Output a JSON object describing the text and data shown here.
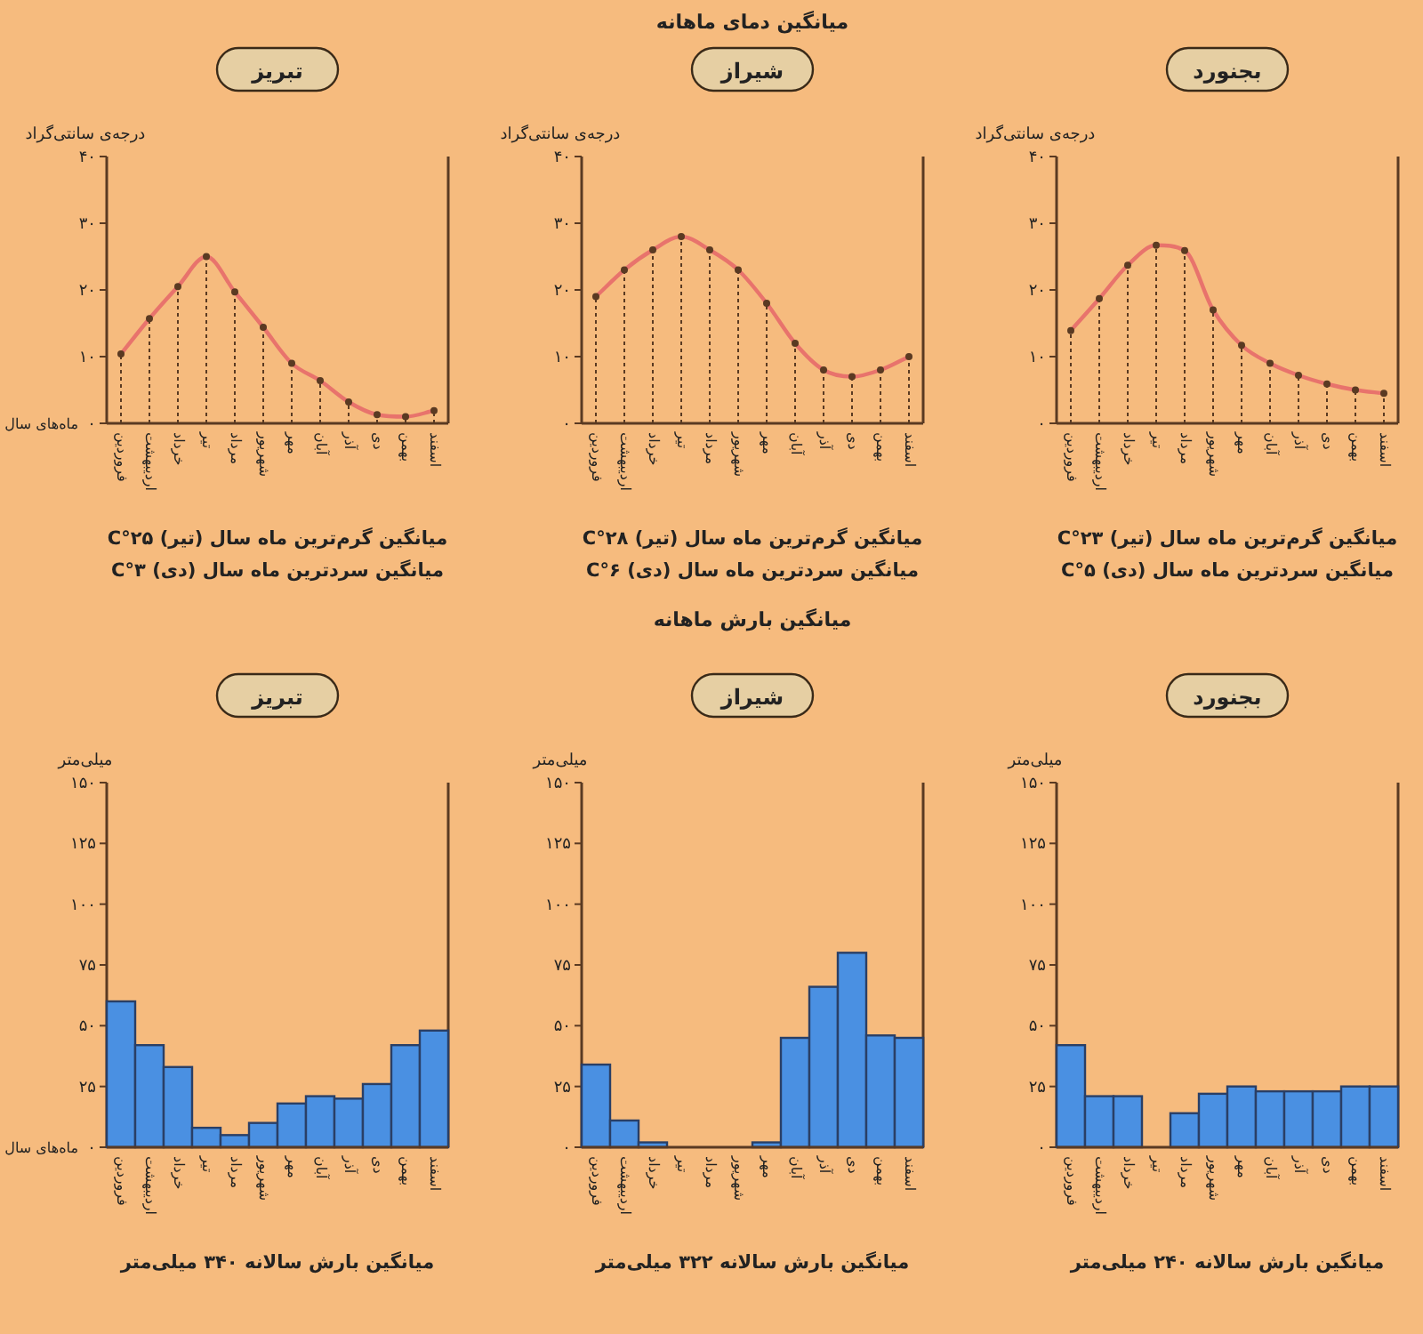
{
  "chart_data": [
    {
      "type": "line",
      "title": "تبریز",
      "ylabel": "درجه‌ی سانتی‌گراد",
      "xlabel": "ماه‌های سال",
      "categories": [
        "فروردین",
        "اردیبهشت",
        "خرداد",
        "تیر",
        "مرداد",
        "شهریور",
        "مهر",
        "آبان",
        "آذر",
        "دی",
        "بهمن",
        "اسفند"
      ],
      "series": [
        {
          "color": "#e8736c",
          "values": [
            10.4,
            15.7,
            20.5,
            25,
            19.7,
            14.4,
            9,
            6.4,
            3.2,
            1.3,
            1,
            1.9
          ]
        },
        {
          "type": "lollipop",
          "color": "#5a3a22",
          "values": [
            10.4,
            15.7,
            20.5,
            25,
            19.7,
            14.4,
            9,
            6.4,
            3.2,
            1.3,
            1,
            1.9
          ]
        }
      ],
      "ylim": [
        0,
        40
      ],
      "yticks": [
        {
          "value": 0,
          "label": "۰"
        },
        {
          "value": 10,
          "label": "۱۰"
        },
        {
          "value": 20,
          "label": "۲۰"
        },
        {
          "value": 30,
          "label": "۳۰"
        },
        {
          "value": 40,
          "label": "۴۰"
        }
      ],
      "line_style": "solid",
      "annotations": [
        "میانگین گرم‌ترین ماه سال (تیر) ۲۵°C",
        "میانگین سردترین ماه سال (دی) ۳°C"
      ]
    },
    {
      "type": "line",
      "subtitle": "میانگین دمای ماهانه",
      "title": "شیراز",
      "ylabel": "درجه‌ی سانتی‌گراد",
      "categories": [
        "فروردین",
        "اردیبهشت",
        "خرداد",
        "تیر",
        "مرداد",
        "شهریور",
        "مهر",
        "آبان",
        "آذر",
        "دی",
        "بهمن",
        "اسفند"
      ],
      "series": [
        {
          "color": "#e8736c",
          "values": [
            19,
            23,
            26,
            28,
            26,
            23,
            18,
            12,
            8,
            7,
            8,
            10
          ]
        },
        {
          "type": "lollipop",
          "color": "#5a3a22",
          "values": [
            19,
            23,
            26,
            28,
            26,
            23,
            18,
            12,
            8,
            7,
            8,
            10
          ]
        }
      ],
      "ylim": [
        0,
        40
      ],
      "yticks": [
        {
          "value": 0,
          "label": "۰"
        },
        {
          "value": 10,
          "label": "۱۰"
        },
        {
          "value": 20,
          "label": "۲۰"
        },
        {
          "value": 30,
          "label": "۳۰"
        },
        {
          "value": 40,
          "label": "۴۰"
        }
      ],
      "line_style": "solid",
      "annotations": [
        "میانگین گرم‌ترین ماه سال (تیر) ۲۸°C",
        "میانگین سردترین ماه سال (دی) ۶°C"
      ]
    },
    {
      "type": "line",
      "title": "بجنورد",
      "ylabel": "درجه‌ی سانتی‌گراد",
      "categories": [
        "فروردین",
        "اردیبهشت",
        "خرداد",
        "تیر",
        "مرداد",
        "شهریور",
        "مهر",
        "آبان",
        "آذر",
        "دی",
        "بهمن",
        "اسفند"
      ],
      "series": [
        {
          "color": "#e8736c",
          "values": [
            13.9,
            18.7,
            23.7,
            26.7,
            25.9,
            17,
            11.7,
            9,
            7.2,
            5.9,
            5,
            4.5
          ]
        },
        {
          "type": "lollipop",
          "color": "#5a3a22",
          "values": [
            13.9,
            18.7,
            23.7,
            26.7,
            25.9,
            17,
            11.7,
            9,
            7.2,
            5.9,
            5,
            4.5
          ]
        }
      ],
      "ylim": [
        0,
        40
      ],
      "yticks": [
        {
          "value": 0,
          "label": "۰"
        },
        {
          "value": 10,
          "label": "۱۰"
        },
        {
          "value": 20,
          "label": "۲۰"
        },
        {
          "value": 30,
          "label": "۳۰"
        },
        {
          "value": 40,
          "label": "۴۰"
        }
      ],
      "line_style": "solid",
      "annotations": [
        "میانگین گرم‌ترین ماه سال (تیر) ۲۳°C",
        "میانگین سردترین ماه سال (دی) ۵°C"
      ]
    },
    {
      "type": "bar",
      "title": "تبریز",
      "ylabel": "میلی‌متر",
      "xlabel": "ماه‌های سال",
      "categories": [
        "فروردین",
        "اردیبهشت",
        "خرداد",
        "تیر",
        "مرداد",
        "شهریور",
        "مهر",
        "آبان",
        "آذر",
        "دی",
        "بهمن",
        "اسفند"
      ],
      "series": [
        {
          "color": "#4a90e2",
          "values": [
            60,
            42,
            33,
            8,
            5,
            10,
            18,
            21,
            20,
            26,
            42,
            48
          ]
        }
      ],
      "ylim": [
        0,
        150
      ],
      "yticks": [
        {
          "value": 0,
          "label": "۰"
        },
        {
          "value": 25,
          "label": "۲۵"
        },
        {
          "value": 50,
          "label": "۵۰"
        },
        {
          "value": 75,
          "label": "۷۵"
        },
        {
          "value": 100,
          "label": "۱۰۰"
        },
        {
          "value": 125,
          "label": "۱۲۵"
        },
        {
          "value": 150,
          "label": "۱۵۰"
        }
      ],
      "annotations": [
        "میانگین بارش سالانه ۳۴۰ میلی‌متر"
      ]
    },
    {
      "type": "bar",
      "subtitle": "میانگین بارش ماهانه",
      "title": "شیراز",
      "ylabel": "میلی‌متر",
      "categories": [
        "فروردین",
        "اردیبهشت",
        "خرداد",
        "تیر",
        "مرداد",
        "شهریور",
        "مهر",
        "آبان",
        "آذر",
        "دی",
        "بهمن",
        "اسفند"
      ],
      "series": [
        {
          "color": "#4a90e2",
          "values": [
            34,
            11,
            2,
            0,
            0,
            0,
            2,
            45,
            66,
            80,
            46,
            45
          ]
        }
      ],
      "ylim": [
        0,
        150
      ],
      "yticks": [
        {
          "value": 0,
          "label": "۰"
        },
        {
          "value": 25,
          "label": "۲۵"
        },
        {
          "value": 50,
          "label": "۵۰"
        },
        {
          "value": 75,
          "label": "۷۵"
        },
        {
          "value": 100,
          "label": "۱۰۰"
        },
        {
          "value": 125,
          "label": "۱۲۵"
        },
        {
          "value": 150,
          "label": "۱۵۰"
        }
      ],
      "annotations": [
        "میانگین بارش سالانه ۳۲۲ میلی‌متر"
      ]
    },
    {
      "type": "bar",
      "title": "بجنورد",
      "ylabel": "میلی‌متر",
      "categories": [
        "فروردین",
        "اردیبهشت",
        "خرداد",
        "تیر",
        "مرداد",
        "شهریور",
        "مهر",
        "آبان",
        "آذر",
        "دی",
        "بهمن",
        "اسفند"
      ],
      "series": [
        {
          "color": "#4a90e2",
          "values": [
            42,
            21,
            21,
            0,
            14,
            22,
            25,
            23,
            23,
            23,
            25,
            25
          ]
        }
      ],
      "ylim": [
        0,
        150
      ],
      "yticks": [
        {
          "value": 0,
          "label": "۰"
        },
        {
          "value": 25,
          "label": "۲۵"
        },
        {
          "value": 50,
          "label": "۵۰"
        },
        {
          "value": 75,
          "label": "۷۵"
        },
        {
          "value": 100,
          "label": "۱۰۰"
        },
        {
          "value": 125,
          "label": "۱۲۵"
        },
        {
          "value": 150,
          "label": "۱۵۰"
        }
      ],
      "annotations": [
        "میانگین بارش سالانه ۲۴۰ میلی‌متر"
      ]
    }
  ]
}
